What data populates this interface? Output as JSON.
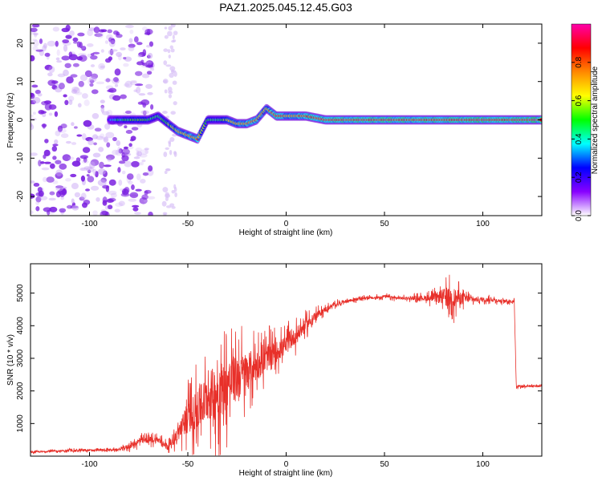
{
  "title": "PAZ1.2025.045.12.45.G03",
  "chart_data": [
    {
      "type": "heatmap",
      "xlabel": "Height of straight line (km)",
      "ylabel": "Frequency (Hz)",
      "xlim": [
        -130,
        130
      ],
      "ylim": [
        -25,
        25
      ],
      "xticks": [
        -100,
        -50,
        0,
        50,
        100
      ],
      "yticks": [
        -20,
        -10,
        0,
        10,
        20
      ],
      "colorbar": {
        "label": "Normalized spectral amplitude",
        "range": [
          0.0,
          1.0
        ],
        "ticks": [
          0.0,
          0.2,
          0.4,
          0.6,
          0.8
        ],
        "colormap": [
          "#ffffff",
          "#8800ff",
          "#0000ff",
          "#00ffff",
          "#00ff00",
          "#ffff00",
          "#ff8800",
          "#ff0000",
          "#ff00aa"
        ]
      },
      "ridge": {
        "x": [
          -90,
          -85,
          -80,
          -75,
          -70,
          -65,
          -60,
          -55,
          -50,
          -45,
          -40,
          -35,
          -30,
          -25,
          -20,
          -15,
          -10,
          -5,
          0,
          10,
          20,
          40,
          60,
          80,
          100,
          130
        ],
        "freq": [
          0,
          0,
          0,
          0,
          0,
          1,
          -1,
          -3,
          -4,
          -5,
          0,
          0,
          0,
          -1,
          -1,
          0,
          3,
          1,
          1,
          1,
          0,
          0,
          0,
          0,
          0,
          0
        ],
        "amplitude": [
          0.3,
          0.5,
          0.5,
          0.6,
          0.5,
          0.5,
          0.6,
          0.7,
          0.75,
          0.8,
          0.5,
          0.5,
          0.6,
          0.7,
          0.8,
          0.8,
          0.7,
          0.9,
          0.8,
          0.85,
          0.9,
          0.9,
          0.9,
          0.9,
          0.95,
          0.95
        ]
      },
      "noise_region": {
        "x_range": [
          -130,
          -80
        ],
        "freq_range": [
          -25,
          25
        ],
        "amplitude_max": 0.2
      }
    },
    {
      "type": "line",
      "xlabel": "Height of straight line (km)",
      "ylabel": "SNR (10 * v/v)",
      "xlim": [
        -130,
        130
      ],
      "ylim": [
        0,
        5900
      ],
      "xticks": [
        -100,
        -50,
        0,
        50,
        100
      ],
      "yticks": [
        1000,
        2000,
        3000,
        4000,
        5000
      ],
      "color": "#e8302a",
      "series": [
        {
          "x": [
            -130,
            -120,
            -110,
            -100,
            -90,
            -85,
            -80,
            -75,
            -70,
            -65,
            -60,
            -55,
            -50,
            -45,
            -40,
            -35,
            -30,
            -25,
            -20,
            -15,
            -10,
            -5,
            0,
            5,
            10,
            15,
            20,
            25,
            30,
            35,
            40,
            45,
            50,
            55,
            60,
            65,
            70,
            75,
            80,
            85,
            90,
            95,
            100,
            105,
            110,
            115,
            116,
            117,
            120,
            125,
            130
          ],
          "mean": [
            120,
            150,
            170,
            180,
            190,
            200,
            300,
            450,
            500,
            500,
            300,
            700,
            1200,
            1400,
            1800,
            2000,
            2200,
            2400,
            2600,
            2800,
            3000,
            3200,
            3400,
            3700,
            4000,
            4300,
            4500,
            4650,
            4750,
            4800,
            4850,
            4850,
            4900,
            4850,
            4850,
            4850,
            4850,
            4850,
            4900,
            4850,
            4850,
            4800,
            4800,
            4800,
            4750,
            4750,
            4750,
            2150,
            2150,
            2150,
            2150
          ],
          "spread": [
            60,
            60,
            70,
            70,
            70,
            80,
            200,
            250,
            250,
            250,
            200,
            600,
            1200,
            1500,
            1800,
            2200,
            2000,
            1800,
            1500,
            1200,
            1000,
            800,
            700,
            600,
            500,
            300,
            200,
            150,
            120,
            120,
            100,
            100,
            120,
            100,
            100,
            150,
            200,
            300,
            600,
            800,
            400,
            200,
            150,
            150,
            120,
            120,
            100,
            100,
            80,
            80,
            80
          ]
        }
      ]
    }
  ]
}
